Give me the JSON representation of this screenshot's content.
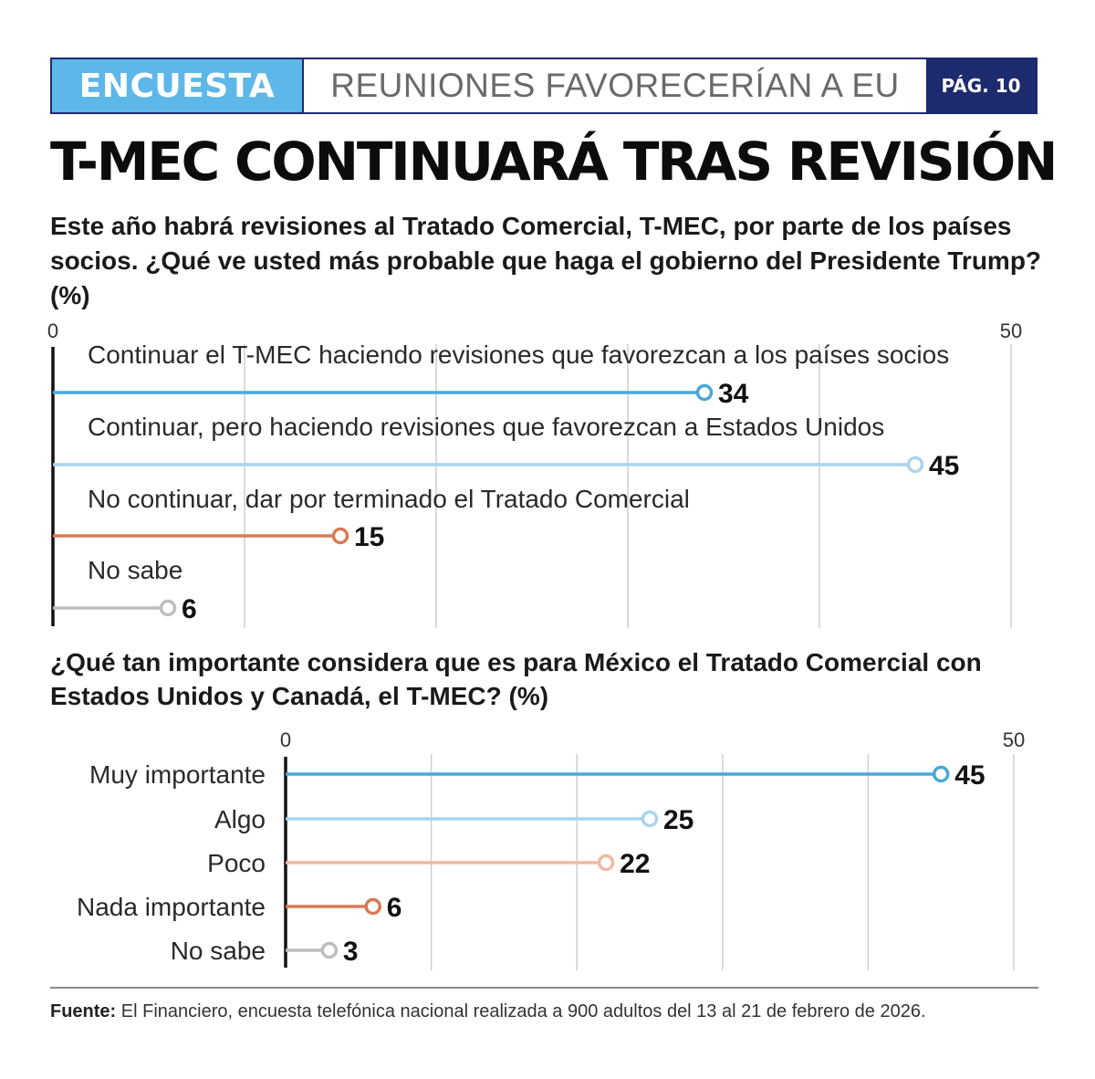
{
  "header": {
    "tag": "ENCUESTA",
    "section": "REUNIONES FAVORECERÍAN A EU",
    "page": "PÁG. 10"
  },
  "title": "T-MEC CONTINUARÁ TRAS REVISIÓN",
  "colors": {
    "header_tag": "#5db7e8",
    "header_dark": "#1d2a6e",
    "blue": "#4ba7da",
    "light_blue": "#a9d4ee",
    "orange": "#d87a56",
    "light_orange": "#f1b9a2",
    "gray": "#bdbdbd"
  },
  "chart_data": [
    {
      "type": "bar",
      "title": "Este año habrá revisiones al Tratado Comercial, T-MEC, por parte de los países socios. ¿Qué ve usted más probable que haga el gobierno del Presidente Trump? (%)",
      "xlim": [
        0,
        50
      ],
      "tick_labels": [
        "0",
        "50"
      ],
      "grid": true,
      "categories": [
        "Continuar el T-MEC haciendo revisiones que favorezcan a los países socios",
        "Continuar, pero haciendo revisiones que favorezcan a Estados Unidos",
        "No continuar, dar por terminado el Tratado Comercial",
        "No sabe"
      ],
      "values": [
        34,
        45,
        15,
        6
      ],
      "value_labels": [
        "34",
        "45",
        "15",
        "6"
      ],
      "colors": [
        "#4ba7da",
        "#a9d4ee",
        "#d87a56",
        "#bdbdbd"
      ]
    },
    {
      "type": "bar",
      "title": "¿Qué tan importante considera que es para México el Tratado Comercial con Estados Unidos y Canadá, el T-MEC? (%)",
      "xlim": [
        0,
        50
      ],
      "tick_labels": [
        "0",
        "50"
      ],
      "grid": true,
      "categories": [
        "Muy importante",
        "Algo",
        "Poco",
        "Nada importante",
        "No sabe"
      ],
      "values": [
        45,
        25,
        22,
        6,
        3
      ],
      "value_labels": [
        "45",
        "25",
        "22",
        "6",
        "3"
      ],
      "colors": [
        "#4ba7da",
        "#a9d4ee",
        "#f1b9a2",
        "#d87a56",
        "#bdbdbd"
      ]
    }
  ],
  "footer": {
    "label": "Fuente:",
    "text": " El Financiero, encuesta telefónica nacional realizada a 900 adultos del 13 al 21 de febrero de 2026."
  }
}
